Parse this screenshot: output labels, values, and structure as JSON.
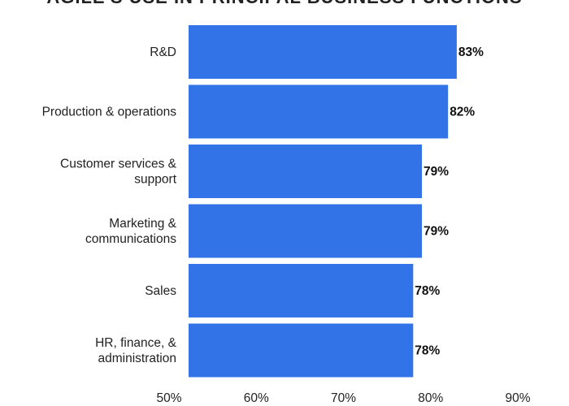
{
  "chart_data": {
    "type": "bar",
    "orientation": "horizontal",
    "title": "AGILE'S USE IN PRINCIPAL BUSINESS FUNCTIONS",
    "categories": [
      "R&D",
      "Production & operations",
      "Customer services & support",
      "Marketing & communications",
      "Sales",
      "HR, finance, & administration"
    ],
    "category_lines": [
      [
        "R&D"
      ],
      [
        "Production & operations"
      ],
      [
        "Customer services &",
        "support"
      ],
      [
        "Marketing &",
        "communications"
      ],
      [
        "Sales"
      ],
      [
        "HR, finance, &",
        "administration"
      ]
    ],
    "values": [
      83,
      82,
      79,
      79,
      78,
      78
    ],
    "value_labels": [
      "83%",
      "82%",
      "79%",
      "79%",
      "78%",
      "78%"
    ],
    "xlim": [
      50,
      90
    ],
    "xticks": [
      50,
      60,
      70,
      80,
      90
    ],
    "xtick_labels": [
      "50%",
      "60%",
      "70%",
      "80%",
      "90%"
    ],
    "bar_color": "#3373e8",
    "grid": false,
    "xlabel": "",
    "ylabel": ""
  }
}
